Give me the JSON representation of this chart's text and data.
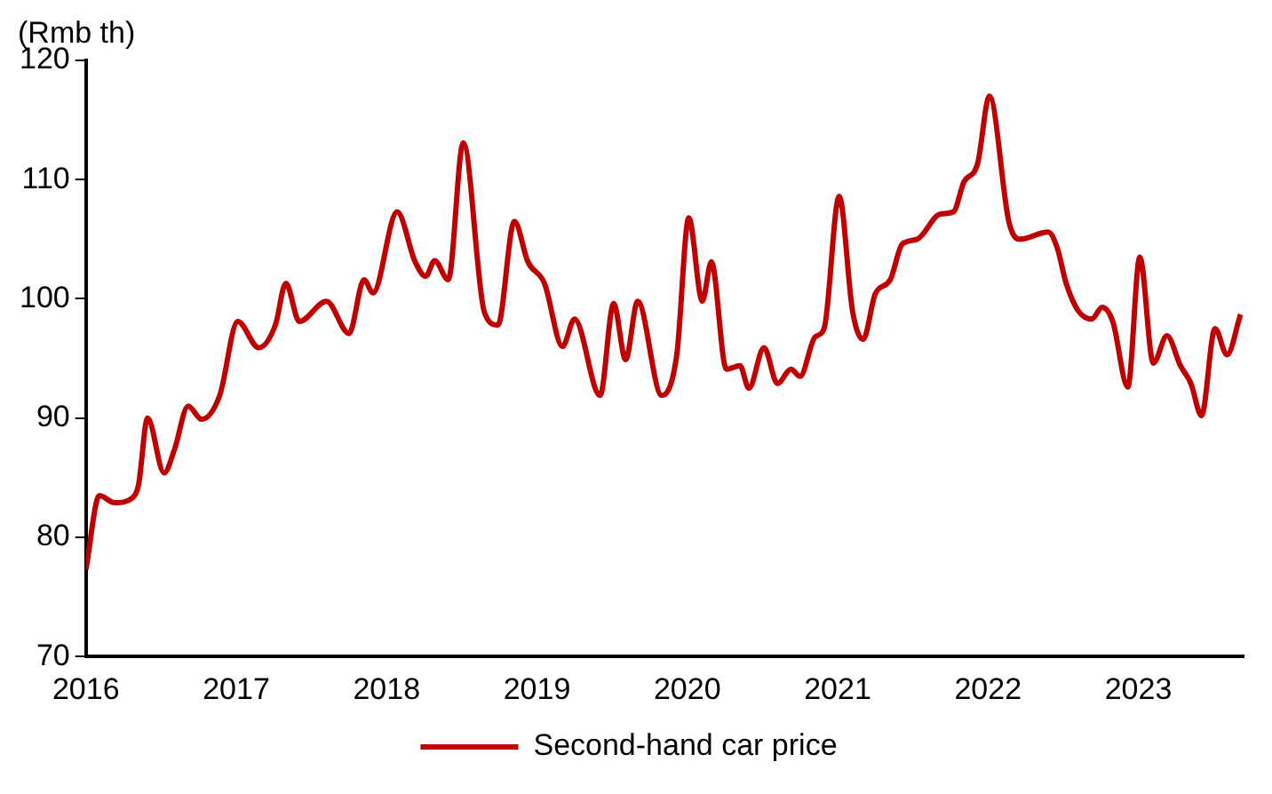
{
  "chart_data": {
    "type": "line",
    "ylabel": "(Rmb th)",
    "xlim": [
      2016,
      2023.7
    ],
    "xticks": [
      2016,
      2017,
      2018,
      2019,
      2020,
      2021,
      2022,
      2023
    ],
    "ylim": [
      70,
      120
    ],
    "yticks": [
      70,
      80,
      90,
      100,
      110,
      120
    ],
    "grid": false,
    "legend": "bottom",
    "marker": "none",
    "line_style": "solid",
    "series": [
      {
        "name": "Second-hand car price",
        "color": "#c00000",
        "x": [
          2016.0,
          2016.09,
          2016.19,
          2016.31,
          2016.35,
          2016.41,
          2016.52,
          2016.59,
          2016.68,
          2016.77,
          2016.89,
          2017.01,
          2017.15,
          2017.26,
          2017.33,
          2017.42,
          2017.6,
          2017.75,
          2017.85,
          2017.91,
          2018.07,
          2018.19,
          2018.26,
          2018.32,
          2018.41,
          2018.51,
          2018.65,
          2018.74,
          2018.85,
          2018.94,
          2019.05,
          2019.17,
          2019.25,
          2019.42,
          2019.51,
          2019.59,
          2019.67,
          2019.83,
          2019.93,
          2020.01,
          2020.1,
          2020.16,
          2020.26,
          2020.35,
          2020.41,
          2020.51,
          2020.6,
          2020.69,
          2020.75,
          2020.85,
          2020.91,
          2021.01,
          2021.1,
          2021.17,
          2021.25,
          2021.35,
          2021.43,
          2021.53,
          2021.68,
          2021.77,
          2021.84,
          2021.93,
          2022.01,
          2022.14,
          2022.21,
          2022.4,
          2022.46,
          2022.52,
          2022.6,
          2022.69,
          2022.76,
          2022.83,
          2022.93,
          2023.01,
          2023.1,
          2023.19,
          2023.28,
          2023.35,
          2023.42,
          2023.51,
          2023.59,
          2023.68
        ],
        "values": [
          77.3,
          83.5,
          82.9,
          83.3,
          84.4,
          90.0,
          85.4,
          87.4,
          91.0,
          89.9,
          91.9,
          98.1,
          95.9,
          97.8,
          101.3,
          98.1,
          99.8,
          97.1,
          101.6,
          100.5,
          107.3,
          103.1,
          101.9,
          103.2,
          101.6,
          113.1,
          98.9,
          97.8,
          106.5,
          103.1,
          101.3,
          96.0,
          98.3,
          91.9,
          99.6,
          94.9,
          99.8,
          91.9,
          95.3,
          106.8,
          99.8,
          103.1,
          94.1,
          94.4,
          92.5,
          95.9,
          92.9,
          94.1,
          93.5,
          96.8,
          97.5,
          108.6,
          98.9,
          96.6,
          100.4,
          101.6,
          104.6,
          105.0,
          107.1,
          107.3,
          109.8,
          111.3,
          117.0,
          106.4,
          105.0,
          105.6,
          104.3,
          101.3,
          99.0,
          98.3,
          99.3,
          98.1,
          92.6,
          103.5,
          94.6,
          96.9,
          94.4,
          92.9,
          90.2,
          97.5,
          95.3,
          98.7
        ]
      }
    ]
  }
}
